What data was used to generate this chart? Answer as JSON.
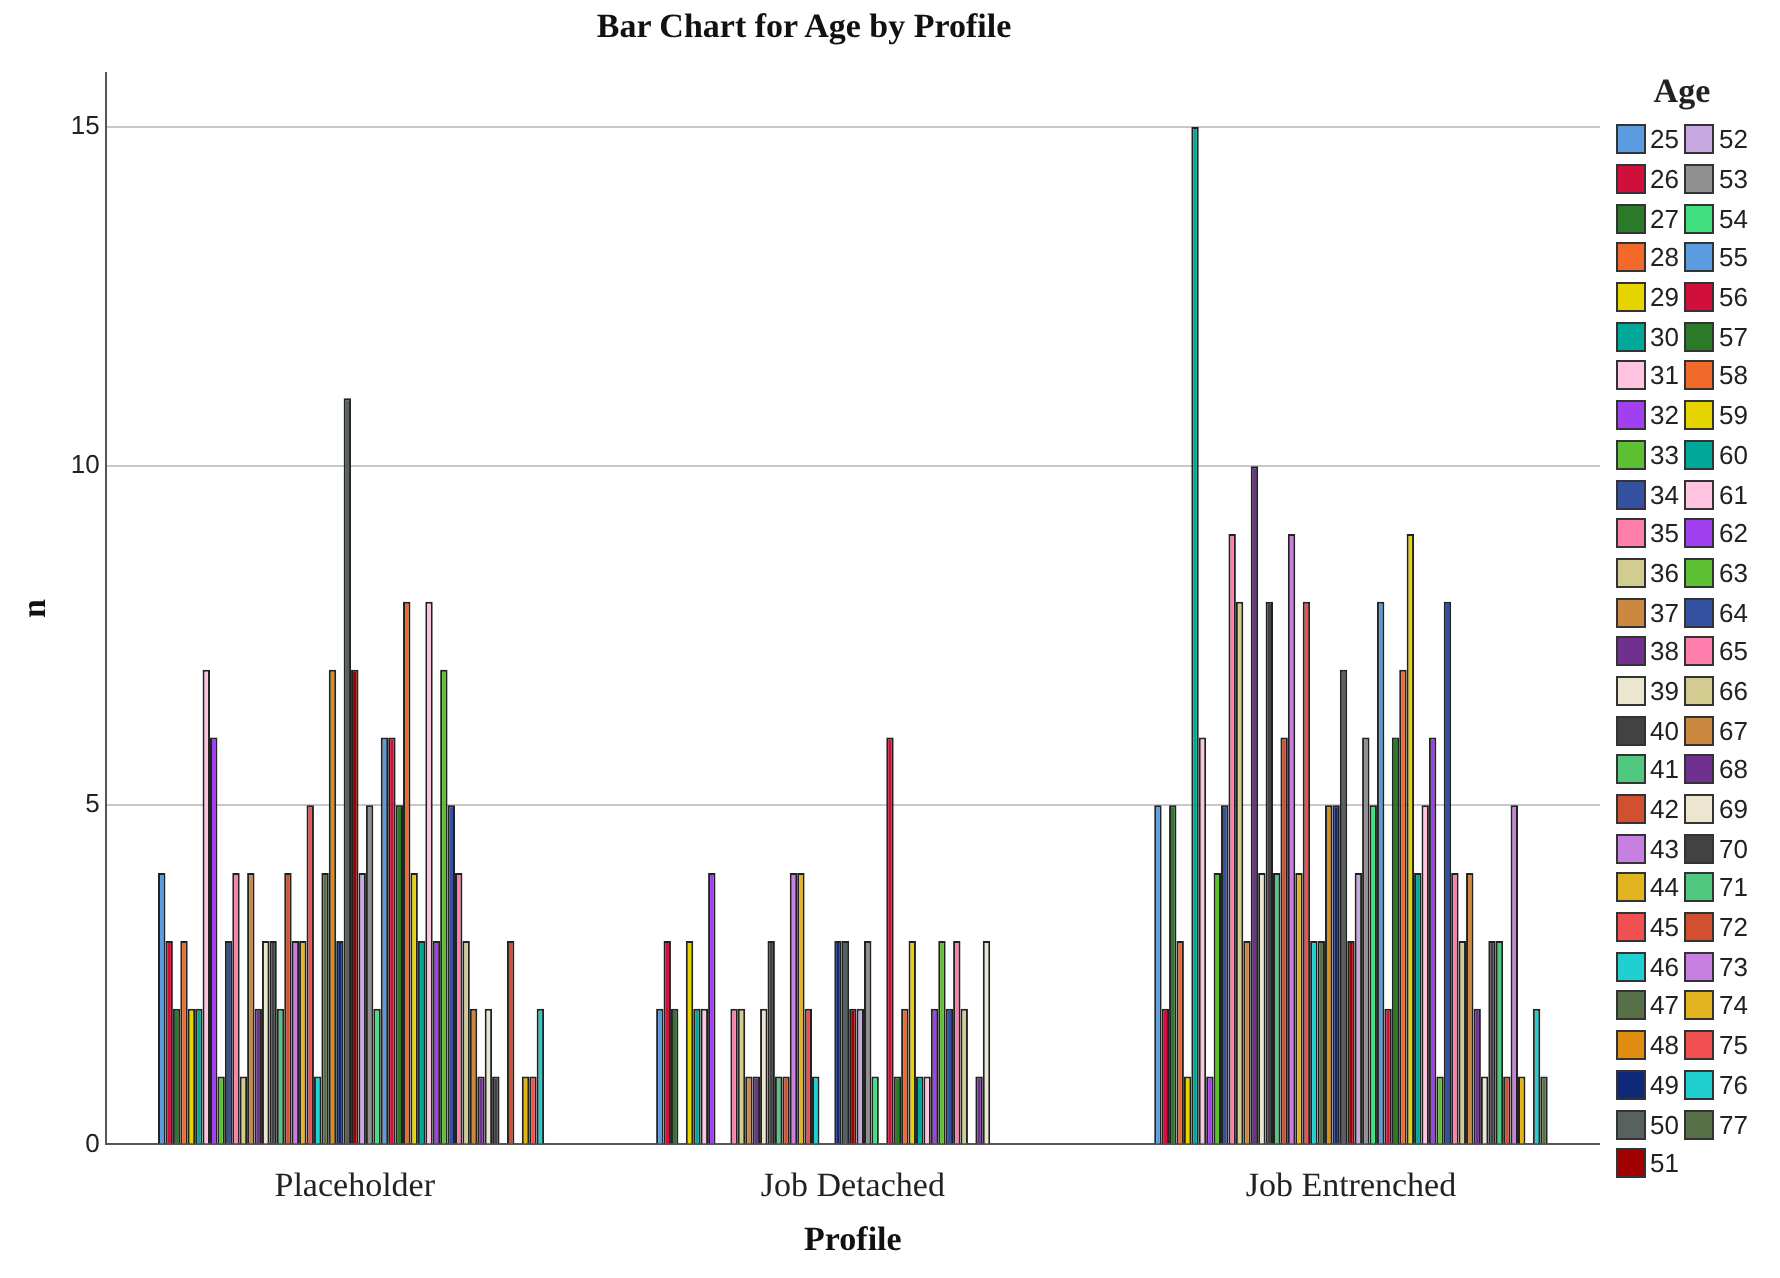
{
  "chart_data": {
    "type": "bar",
    "title": "Bar Chart for Age by Profile",
    "xlabel": "Profile",
    "ylabel": "n",
    "legend_title": "Age",
    "legend": "right",
    "grid": "y",
    "categories": [
      "Placeholder",
      "Job Detached",
      "Job Entrenched"
    ],
    "ylim": [
      0,
      15.8
    ],
    "yticks": [
      0,
      5,
      10,
      15
    ],
    "series": [
      {
        "name": "25",
        "color": "#5b9be0",
        "values": [
          4,
          2,
          5
        ]
      },
      {
        "name": "26",
        "color": "#d0103a",
        "values": [
          3,
          3,
          2
        ]
      },
      {
        "name": "27",
        "color": "#2a7a2a",
        "values": [
          2,
          2,
          5
        ]
      },
      {
        "name": "28",
        "color": "#f26a2a",
        "values": [
          3,
          null,
          3
        ]
      },
      {
        "name": "29",
        "color": "#e6d400",
        "values": [
          2,
          3,
          1
        ]
      },
      {
        "name": "30",
        "color": "#00a89a",
        "values": [
          2,
          2,
          15
        ]
      },
      {
        "name": "31",
        "color": "#ffc4e0",
        "values": [
          7,
          2,
          6
        ]
      },
      {
        "name": "32",
        "color": "#a040f0",
        "values": [
          6,
          4,
          1
        ]
      },
      {
        "name": "33",
        "color": "#5cc032",
        "values": [
          1,
          null,
          4
        ]
      },
      {
        "name": "34",
        "color": "#3450a0",
        "values": [
          3,
          null,
          5
        ]
      },
      {
        "name": "35",
        "color": "#ff7eac",
        "values": [
          4,
          2,
          9
        ]
      },
      {
        "name": "36",
        "color": "#d2cc90",
        "values": [
          1,
          2,
          8
        ]
      },
      {
        "name": "37",
        "color": "#cc8840",
        "values": [
          4,
          1,
          3
        ]
      },
      {
        "name": "38",
        "color": "#703090",
        "values": [
          2,
          1,
          10
        ]
      },
      {
        "name": "39",
        "color": "#ece6d0",
        "values": [
          3,
          2,
          4
        ]
      },
      {
        "name": "40",
        "color": "#404244",
        "values": [
          3,
          3,
          8
        ]
      },
      {
        "name": "41",
        "color": "#50c880",
        "values": [
          2,
          1,
          4
        ]
      },
      {
        "name": "42",
        "color": "#d05030",
        "values": [
          4,
          1,
          6
        ]
      },
      {
        "name": "43",
        "color": "#c880e0",
        "values": [
          3,
          4,
          9
        ]
      },
      {
        "name": "44",
        "color": "#e2b420",
        "values": [
          3,
          4,
          4
        ]
      },
      {
        "name": "45",
        "color": "#f05050",
        "values": [
          5,
          2,
          8
        ]
      },
      {
        "name": "46",
        "color": "#20d0d0",
        "values": [
          1,
          1,
          3
        ]
      },
      {
        "name": "47",
        "color": "#587048",
        "values": [
          4,
          null,
          3
        ]
      },
      {
        "name": "48",
        "color": "#e08c10",
        "values": [
          7,
          null,
          5
        ]
      },
      {
        "name": "49",
        "color": "#102878",
        "values": [
          3,
          3,
          5
        ]
      },
      {
        "name": "50",
        "color": "#586060",
        "values": [
          11,
          3,
          7
        ]
      },
      {
        "name": "51",
        "color": "#a00000",
        "values": [
          7,
          2,
          3
        ]
      },
      {
        "name": "52",
        "color": "#c8a8e0",
        "values": [
          4,
          2,
          4
        ]
      },
      {
        "name": "53",
        "color": "#909090",
        "values": [
          5,
          3,
          6
        ]
      },
      {
        "name": "54",
        "color": "#40e080",
        "values": [
          2,
          1,
          5
        ]
      },
      {
        "name": "55",
        "color": "#5b9be0",
        "values": [
          6,
          null,
          8
        ]
      },
      {
        "name": "56",
        "color": "#d0103a",
        "values": [
          6,
          6,
          2
        ]
      },
      {
        "name": "57",
        "color": "#2a7a2a",
        "values": [
          5,
          1,
          6
        ]
      },
      {
        "name": "58",
        "color": "#f26a2a",
        "values": [
          8,
          2,
          7
        ]
      },
      {
        "name": "59",
        "color": "#e6d400",
        "values": [
          4,
          3,
          9
        ]
      },
      {
        "name": "60",
        "color": "#00a89a",
        "values": [
          3,
          1,
          4
        ]
      },
      {
        "name": "61",
        "color": "#ffc4e0",
        "values": [
          8,
          1,
          5
        ]
      },
      {
        "name": "62",
        "color": "#a040f0",
        "values": [
          3,
          2,
          6
        ]
      },
      {
        "name": "63",
        "color": "#5cc032",
        "values": [
          7,
          3,
          1
        ]
      },
      {
        "name": "64",
        "color": "#3450a0",
        "values": [
          5,
          2,
          8
        ]
      },
      {
        "name": "65",
        "color": "#ff7eac",
        "values": [
          4,
          3,
          4
        ]
      },
      {
        "name": "66",
        "color": "#d2cc90",
        "values": [
          3,
          2,
          3
        ]
      },
      {
        "name": "67",
        "color": "#cc8840",
        "values": [
          2,
          null,
          4
        ]
      },
      {
        "name": "68",
        "color": "#703090",
        "values": [
          1,
          1,
          2
        ]
      },
      {
        "name": "69",
        "color": "#ece6d0",
        "values": [
          2,
          3,
          1
        ]
      },
      {
        "name": "70",
        "color": "#404244",
        "values": [
          1,
          null,
          3
        ]
      },
      {
        "name": "71",
        "color": "#50c880",
        "values": [
          null,
          null,
          3
        ]
      },
      {
        "name": "72",
        "color": "#d05030",
        "values": [
          3,
          null,
          1
        ]
      },
      {
        "name": "73",
        "color": "#c880e0",
        "values": [
          null,
          null,
          5
        ]
      },
      {
        "name": "74",
        "color": "#e2b420",
        "values": [
          1,
          null,
          1
        ]
      },
      {
        "name": "75",
        "color": "#f05050",
        "values": [
          1,
          null,
          null
        ]
      },
      {
        "name": "76",
        "color": "#20d0d0",
        "values": [
          2,
          null,
          2
        ]
      },
      {
        "name": "77",
        "color": "#587048",
        "values": [
          null,
          null,
          1
        ]
      }
    ]
  }
}
